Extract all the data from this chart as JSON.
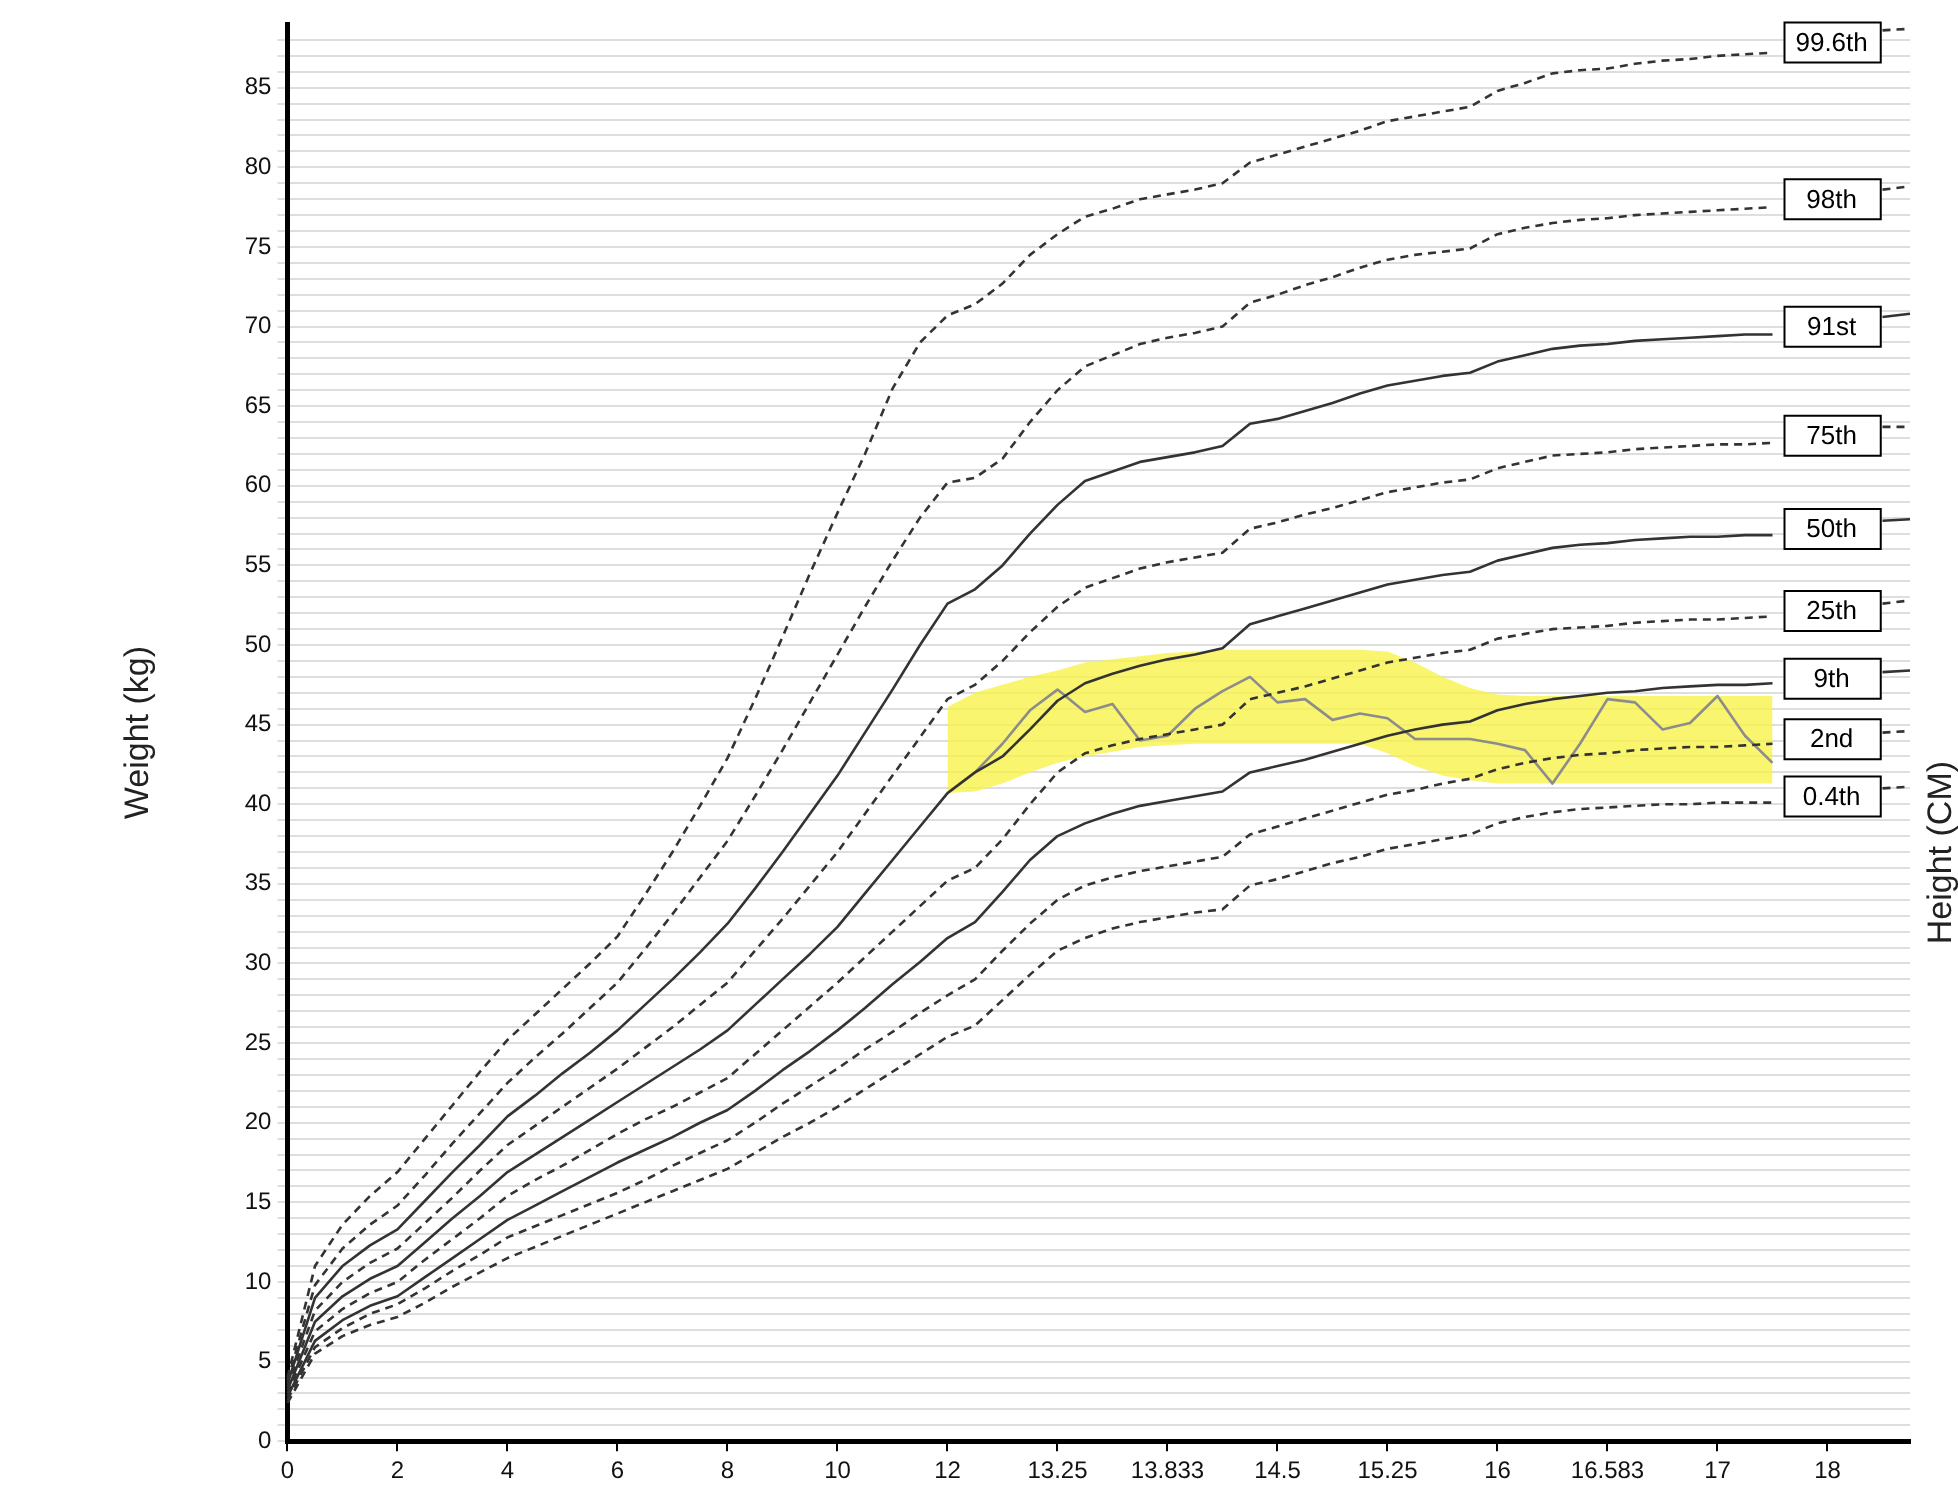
{
  "chart_data": {
    "type": "line",
    "ylabel": "Weight (kg)",
    "y2label": "Height (CM)",
    "categories": [
      "0",
      null,
      null,
      null,
      "2",
      null,
      null,
      null,
      "4",
      null,
      null,
      null,
      "6",
      null,
      null,
      null,
      "8",
      null,
      null,
      null,
      "10",
      null,
      null,
      null,
      "12",
      null,
      null,
      null,
      "13.25",
      null,
      null,
      null,
      "13.833",
      null,
      null,
      null,
      "14.5",
      null,
      null,
      null,
      "15.25",
      null,
      null,
      null,
      "16",
      null,
      null,
      null,
      "16.583",
      null,
      null,
      null,
      "17",
      null,
      null,
      null,
      "18",
      null,
      null,
      null
    ],
    "ylim": [
      0,
      89
    ],
    "yticks": [
      0,
      {
        "value": 1,
        "label": null
      },
      {
        "value": 2,
        "label": null
      },
      {
        "value": 3,
        "label": null
      },
      {
        "value": 4,
        "label": null
      },
      5,
      {
        "value": 6,
        "label": null
      },
      {
        "value": 7,
        "label": null
      },
      {
        "value": 8,
        "label": null
      },
      {
        "value": 9,
        "label": null
      },
      10,
      {
        "value": 11,
        "label": null
      },
      {
        "value": 12,
        "label": null
      },
      {
        "value": 13,
        "label": null
      },
      {
        "value": 14,
        "label": null
      },
      15,
      {
        "value": 16,
        "label": null
      },
      {
        "value": 17,
        "label": null
      },
      {
        "value": 18,
        "label": null
      },
      {
        "value": 19,
        "label": null
      },
      20,
      {
        "value": 21,
        "label": null
      },
      {
        "value": 22,
        "label": null
      },
      {
        "value": 23,
        "label": null
      },
      {
        "value": 24,
        "label": null
      },
      25,
      {
        "value": 26,
        "label": null
      },
      {
        "value": 27,
        "label": null
      },
      {
        "value": 28,
        "label": null
      },
      {
        "value": 29,
        "label": null
      },
      30,
      {
        "value": 31,
        "label": null
      },
      {
        "value": 32,
        "label": null
      },
      {
        "value": 33,
        "label": null
      },
      {
        "value": 34,
        "label": null
      },
      35,
      {
        "value": 36,
        "label": null
      },
      {
        "value": 37,
        "label": null
      },
      {
        "value": 38,
        "label": null
      },
      {
        "value": 39,
        "label": null
      },
      40,
      {
        "value": 41,
        "label": null
      },
      {
        "value": 42,
        "label": null
      },
      {
        "value": 43,
        "label": null
      },
      {
        "value": 44,
        "label": null
      },
      45,
      {
        "value": 46,
        "label": null
      },
      {
        "value": 47,
        "label": null
      },
      {
        "value": 48,
        "label": null
      },
      {
        "value": 49,
        "label": null
      },
      50,
      {
        "value": 51,
        "label": null
      },
      {
        "value": 52,
        "label": null
      },
      {
        "value": 53,
        "label": null
      },
      {
        "value": 54,
        "label": null
      },
      55,
      {
        "value": 56,
        "label": null
      },
      {
        "value": 57,
        "label": null
      },
      {
        "value": 58,
        "label": null
      },
      {
        "value": 59,
        "label": null
      },
      60,
      {
        "value": 61,
        "label": null
      },
      {
        "value": 62,
        "label": null
      },
      {
        "value": 63,
        "label": null
      },
      {
        "value": 64,
        "label": null
      },
      65,
      {
        "value": 66,
        "label": null
      },
      {
        "value": 67,
        "label": null
      },
      {
        "value": 68,
        "label": null
      },
      {
        "value": 69,
        "label": null
      },
      70,
      {
        "value": 71,
        "label": null
      },
      {
        "value": 72,
        "label": null
      },
      {
        "value": 73,
        "label": null
      },
      {
        "value": 74,
        "label": null
      },
      75,
      {
        "value": 76,
        "label": null
      },
      {
        "value": 77,
        "label": null
      },
      {
        "value": 78,
        "label": null
      },
      {
        "value": 79,
        "label": null
      },
      80,
      {
        "value": 81,
        "label": null
      },
      {
        "value": 82,
        "label": null
      },
      {
        "value": 83,
        "label": null
      },
      {
        "value": 84,
        "label": null
      },
      85,
      {
        "value": 86,
        "label": null
      },
      {
        "value": 87,
        "label": null
      },
      {
        "value": 88,
        "label": null
      }
    ],
    "grid": "y",
    "legend": false,
    "marker": "none",
    "series": [
      {
        "name": "99.6th",
        "color": "#333333",
        "line_style": "dashed",
        "values": [
          4.0,
          11.0,
          13.6,
          15.4,
          16.9,
          19.0,
          21.1,
          23.2,
          25.2,
          26.8,
          28.4,
          30.0,
          31.7,
          34.3,
          37.0,
          39.9,
          42.9,
          46.6,
          50.5,
          54.5,
          58.3,
          62.0,
          66.1,
          69.0,
          70.7,
          71.4,
          72.7,
          74.5,
          75.8,
          76.9,
          77.4,
          78.0,
          78.3,
          78.6,
          79.0,
          80.3,
          80.8,
          81.3,
          81.8,
          82.3,
          82.9,
          83.2,
          83.5,
          83.8,
          84.8,
          85.3,
          85.9,
          86.1,
          86.2,
          86.5,
          86.7,
          86.8,
          87.0,
          87.1,
          87.2,
          null,
          null,
          null,
          88.6,
          88.7
        ]
      },
      {
        "name": "98th",
        "color": "#333333",
        "line_style": "dashed",
        "values": [
          3.8,
          9.8,
          12.1,
          13.6,
          14.8,
          16.7,
          18.7,
          20.6,
          22.5,
          24.1,
          25.6,
          27.2,
          28.8,
          30.9,
          33.1,
          35.4,
          37.7,
          40.5,
          43.4,
          46.4,
          49.4,
          52.4,
          55.3,
          58.0,
          60.2,
          60.5,
          61.7,
          64.0,
          66.0,
          67.5,
          68.2,
          68.9,
          69.3,
          69.6,
          70.0,
          71.5,
          72.0,
          72.6,
          73.1,
          73.7,
          74.2,
          74.5,
          74.7,
          74.9,
          75.8,
          76.2,
          76.5,
          76.7,
          76.8,
          77.0,
          77.1,
          77.2,
          77.3,
          77.4,
          77.5,
          null,
          null,
          null,
          78.6,
          78.8
        ]
      },
      {
        "name": "91st",
        "color": "#333333",
        "line_style": "solid",
        "values": [
          3.6,
          9.0,
          11.0,
          12.3,
          13.3,
          15.1,
          16.9,
          18.6,
          20.4,
          21.7,
          23.1,
          24.4,
          25.8,
          27.4,
          29.0,
          30.7,
          32.5,
          34.7,
          37.0,
          39.4,
          41.8,
          44.5,
          47.2,
          50.0,
          52.6,
          53.5,
          55.0,
          57.0,
          58.8,
          60.3,
          60.9,
          61.5,
          61.8,
          62.1,
          62.5,
          63.9,
          64.2,
          64.7,
          65.2,
          65.8,
          66.3,
          66.6,
          66.9,
          67.1,
          67.8,
          68.2,
          68.6,
          68.8,
          68.9,
          69.1,
          69.2,
          69.3,
          69.4,
          69.5,
          69.5,
          null,
          null,
          null,
          70.6,
          70.8
        ]
      },
      {
        "name": "75th",
        "color": "#333333",
        "line_style": "dashed",
        "values": [
          3.4,
          8.2,
          10.0,
          11.2,
          12.1,
          13.7,
          15.3,
          17.0,
          18.6,
          19.8,
          21.0,
          22.2,
          23.4,
          24.7,
          26.0,
          27.4,
          28.8,
          30.8,
          32.8,
          34.9,
          37.0,
          39.4,
          41.8,
          44.2,
          46.6,
          47.5,
          49.0,
          50.8,
          52.4,
          53.6,
          54.2,
          54.8,
          55.2,
          55.5,
          55.8,
          57.3,
          57.7,
          58.2,
          58.6,
          59.1,
          59.6,
          59.9,
          60.2,
          60.4,
          61.1,
          61.5,
          61.9,
          62.0,
          62.1,
          62.3,
          62.4,
          62.5,
          62.6,
          62.6,
          62.7,
          null,
          null,
          null,
          63.7,
          63.7
        ]
      },
      {
        "name": "50th",
        "color": "#333333",
        "line_style": "solid",
        "values": [
          3.2,
          7.5,
          9.1,
          10.2,
          11.0,
          12.5,
          14.0,
          15.4,
          16.9,
          18.0,
          19.1,
          20.2,
          21.3,
          22.4,
          23.5,
          24.6,
          25.8,
          27.4,
          29.0,
          30.6,
          32.3,
          34.4,
          36.5,
          38.6,
          40.7,
          42.0,
          43.0,
          44.7,
          46.5,
          47.6,
          48.2,
          48.7,
          49.1,
          49.4,
          49.8,
          51.3,
          51.8,
          52.3,
          52.8,
          53.3,
          53.8,
          54.1,
          54.4,
          54.6,
          55.3,
          55.7,
          56.1,
          56.3,
          56.4,
          56.6,
          56.7,
          56.8,
          56.8,
          56.9,
          56.9,
          null,
          null,
          null,
          57.8,
          57.9
        ]
      },
      {
        "name": "25th",
        "color": "#333333",
        "line_style": "dashed",
        "values": [
          3.0,
          6.9,
          8.3,
          9.3,
          10.0,
          11.4,
          12.7,
          14.0,
          15.4,
          16.4,
          17.3,
          18.3,
          19.3,
          20.2,
          21.0,
          21.9,
          22.8,
          24.3,
          25.8,
          27.3,
          28.8,
          30.4,
          32.0,
          33.6,
          35.2,
          36.0,
          37.8,
          40.0,
          42.0,
          43.2,
          43.7,
          44.1,
          44.4,
          44.7,
          45.0,
          46.6,
          47.0,
          47.4,
          47.9,
          48.4,
          48.9,
          49.2,
          49.5,
          49.7,
          50.4,
          50.7,
          51.0,
          51.1,
          51.2,
          51.4,
          51.5,
          51.6,
          51.6,
          51.7,
          51.8,
          null,
          null,
          null,
          52.6,
          52.8
        ]
      },
      {
        "name": "9th",
        "color": "#333333",
        "line_style": "solid",
        "values": [
          2.8,
          6.3,
          7.6,
          8.5,
          9.1,
          10.3,
          11.5,
          12.7,
          13.9,
          14.8,
          15.7,
          16.6,
          17.5,
          18.3,
          19.1,
          20.0,
          20.8,
          22.0,
          23.3,
          24.5,
          25.8,
          27.2,
          28.7,
          30.1,
          31.6,
          32.6,
          34.5,
          36.5,
          38.0,
          38.8,
          39.4,
          39.9,
          40.2,
          40.5,
          40.8,
          42.0,
          42.4,
          42.8,
          43.3,
          43.8,
          44.3,
          44.7,
          45.0,
          45.2,
          45.9,
          46.3,
          46.6,
          46.8,
          47.0,
          47.1,
          47.3,
          47.4,
          47.5,
          47.5,
          47.6,
          null,
          null,
          null,
          48.3,
          48.4
        ]
      },
      {
        "name": "2nd",
        "color": "#333333",
        "line_style": "dashed",
        "values": [
          2.6,
          5.9,
          7.1,
          8.0,
          8.6,
          9.6,
          10.7,
          11.7,
          12.8,
          13.5,
          14.2,
          14.9,
          15.6,
          16.4,
          17.3,
          18.1,
          18.9,
          20.0,
          21.2,
          22.3,
          23.4,
          24.6,
          25.7,
          26.9,
          28.0,
          29.0,
          30.8,
          32.5,
          34.0,
          34.9,
          35.4,
          35.8,
          36.1,
          36.4,
          36.7,
          38.1,
          38.6,
          39.1,
          39.6,
          40.1,
          40.6,
          40.9,
          41.3,
          41.6,
          42.2,
          42.6,
          42.9,
          43.1,
          43.2,
          43.4,
          43.5,
          43.6,
          43.6,
          43.7,
          43.8,
          null,
          null,
          null,
          44.5,
          44.6
        ]
      },
      {
        "name": "0.4th",
        "color": "#333333",
        "line_style": "dashed",
        "values": [
          2.4,
          5.5,
          6.6,
          7.3,
          7.8,
          8.7,
          9.7,
          10.6,
          11.5,
          12.2,
          12.9,
          13.6,
          14.3,
          15.0,
          15.7,
          16.4,
          17.1,
          18.1,
          19.1,
          20.0,
          21.0,
          22.1,
          23.2,
          24.3,
          25.4,
          26.1,
          27.7,
          29.3,
          30.8,
          31.6,
          32.2,
          32.6,
          32.9,
          33.2,
          33.4,
          34.9,
          35.3,
          35.8,
          36.3,
          36.7,
          37.2,
          37.5,
          37.8,
          38.1,
          38.8,
          39.2,
          39.5,
          39.7,
          39.8,
          39.9,
          40.0,
          40.0,
          40.1,
          40.1,
          40.1,
          null,
          null,
          null,
          41.0,
          41.1
        ]
      },
      {
        "color": "#8c8c8c",
        "line_style": "solid",
        "values": [
          null,
          null,
          null,
          null,
          null,
          null,
          null,
          null,
          null,
          null,
          null,
          null,
          null,
          null,
          null,
          null,
          null,
          null,
          null,
          null,
          null,
          null,
          null,
          null,
          null,
          42.0,
          43.8,
          45.9,
          47.2,
          45.8,
          46.3,
          44.0,
          44.3,
          46.0,
          47.1,
          48.0,
          46.4,
          46.6,
          45.3,
          45.7,
          45.4,
          44.1,
          44.1,
          44.1,
          43.8,
          43.4,
          41.3,
          43.8,
          46.6,
          46.4,
          44.7,
          45.1,
          46.8,
          44.3,
          42.6,
          null,
          null,
          null,
          null,
          null
        ],
        "upper": [
          null,
          null,
          null,
          null,
          null,
          null,
          null,
          null,
          null,
          null,
          null,
          null,
          null,
          null,
          null,
          null,
          null,
          null,
          null,
          null,
          null,
          null,
          null,
          null,
          46.1,
          47.0,
          47.5,
          48.0,
          48.4,
          48.9,
          49.1,
          49.3,
          49.5,
          49.6,
          49.7,
          49.7,
          49.7,
          49.7,
          49.7,
          49.7,
          49.6,
          48.9,
          48.0,
          47.3,
          46.9,
          46.8,
          46.8,
          46.8,
          46.8,
          46.8,
          46.8,
          46.8,
          46.8,
          46.8,
          46.8,
          null,
          null,
          null,
          null,
          null
        ],
        "lower": [
          null,
          null,
          null,
          null,
          null,
          null,
          null,
          null,
          null,
          null,
          null,
          null,
          null,
          null,
          null,
          null,
          null,
          null,
          null,
          null,
          null,
          null,
          null,
          null,
          40.7,
          40.8,
          41.3,
          42.0,
          42.6,
          43.0,
          43.3,
          43.6,
          43.7,
          43.8,
          43.8,
          43.8,
          43.8,
          43.8,
          43.8,
          43.8,
          43.2,
          42.4,
          41.8,
          41.5,
          41.3,
          41.3,
          41.3,
          41.3,
          41.3,
          41.3,
          41.3,
          41.3,
          41.3,
          41.3,
          41.3,
          null,
          null,
          null,
          null,
          null
        ]
      }
    ]
  }
}
